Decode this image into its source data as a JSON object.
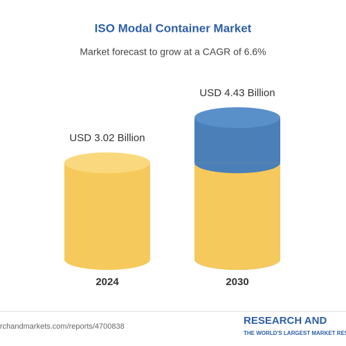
{
  "chart_data": {
    "type": "cylinder-bar",
    "title": "ISO Modal Container Market",
    "subtitle": "Market forecast to grow at a CAGR of 6.6%",
    "categories": [
      "2024",
      "2030"
    ],
    "values": [
      3.02,
      4.43
    ],
    "value_labels": [
      "USD 3.02 Billion",
      "USD 4.43 Billion"
    ],
    "color": "#f6c95c",
    "growth_color": "#4b7fb7",
    "source": "rchandmarkets.com/reports/4700838",
    "logo": "RESEARCH AND",
    "logo_tagline": "THE WORLD'S LARGEST MARKET RESEARCH STORE"
  }
}
